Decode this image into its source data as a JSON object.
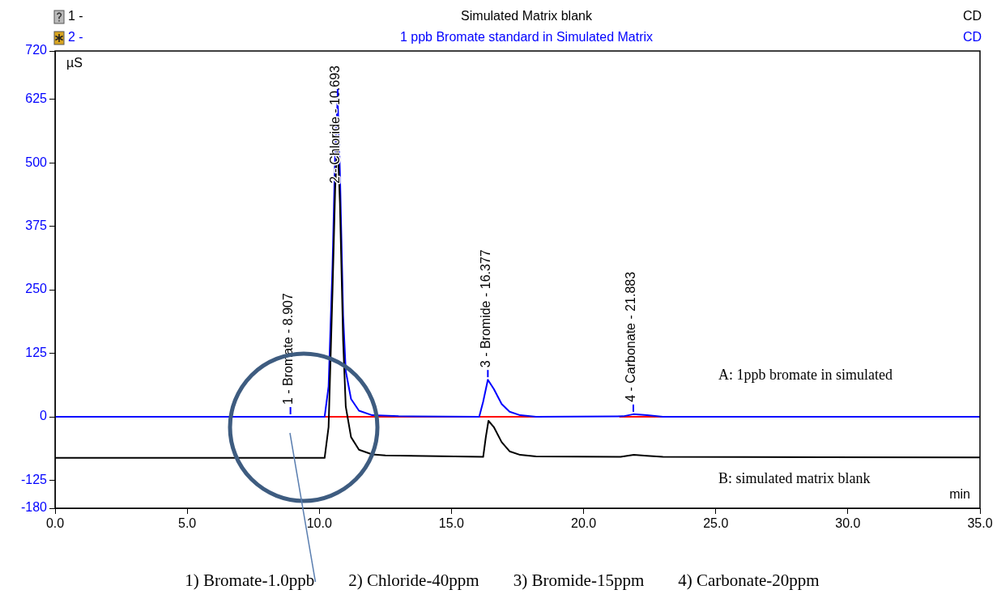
{
  "chart_data": {
    "type": "line",
    "xlabel": "min",
    "ylabel": "µS",
    "legend": "top",
    "x": [
      0,
      10.2,
      10.35,
      10.5,
      10.6,
      10.69,
      10.78,
      10.9,
      11.0,
      11.2,
      11.5,
      12,
      12.5,
      16.2,
      16.3,
      16.4,
      16.6,
      16.9,
      17.2,
      17.6,
      18.2,
      21.4,
      21.9,
      22.4,
      23,
      35
    ],
    "series": [
      {
        "name": "Simulated Matrix blank",
        "color": "#000000",
        "values": [
          -81,
          -81,
          -20,
          250,
          450,
          545,
          420,
          150,
          20,
          -40,
          -65,
          -74,
          -76,
          -79,
          -40,
          -8,
          -20,
          -50,
          -68,
          -75,
          -78,
          -79,
          -75,
          -77,
          -79,
          -80
        ]
      },
      {
        "name": "1 ppb Bromate standard in Simulated Matrix",
        "color": "#0000ff",
        "x": [
          0,
          8.8,
          8.907,
          10.2,
          10.35,
          10.5,
          10.6,
          10.693,
          10.78,
          10.9,
          11.0,
          11.2,
          11.5,
          12,
          13,
          16.05,
          16.2,
          16.377,
          16.6,
          16.9,
          17.2,
          17.6,
          18.2,
          21.5,
          21.883,
          22.4,
          23,
          35
        ],
        "values": [
          0,
          0,
          0,
          0,
          60,
          300,
          520,
          626,
          480,
          200,
          90,
          35,
          12,
          3,
          1,
          0,
          30,
          73,
          55,
          25,
          10,
          3,
          0,
          1,
          5,
          3,
          0,
          0
        ]
      },
      {
        "color": "#ff0000",
        "x": [
          8.8,
          18.2,
          19,
          21.35,
          23.0
        ],
        "values": [
          0,
          0,
          null,
          0,
          0
        ]
      }
    ],
    "xlim": [
      0,
      35
    ],
    "xticks": [
      {
        "value": 0,
        "label": "0.0"
      },
      {
        "value": 5,
        "label": "5.0"
      },
      {
        "value": 10,
        "label": "10.0"
      },
      {
        "value": 15,
        "label": "15.0"
      },
      {
        "value": 20,
        "label": "20.0"
      },
      {
        "value": 25,
        "label": "25.0"
      },
      {
        "value": 30,
        "label": "30.0"
      },
      {
        "value": 35,
        "label": "35.0"
      }
    ],
    "ylim": [
      -180,
      720
    ],
    "yticks": [
      -180,
      -125,
      0,
      125,
      250,
      375,
      500,
      625,
      720
    ],
    "grid": false,
    "marker": "none",
    "line_style": "solid",
    "annotations": [
      "1 -",
      "CD",
      "2 -",
      "CD",
      "A: 1ppb bromate in simulated",
      "B: simulated matrix blank",
      "1) Bromate-1.0ppb        2) Chloride-40ppm        3) Bromide-15ppm        4) Carbonate-20ppm",
      {
        "text": "1 - Bromate - 8.907",
        "x": 8.907,
        "y": 0
      },
      {
        "text": "2 - Chloride - 10.693",
        "x": 10.693,
        "y": 626
      },
      {
        "text": "3 - Bromide - 16.377",
        "x": 16.377,
        "y": 73
      },
      {
        "text": "4 - Carbonate - 21.883",
        "x": 21.883,
        "y": 5
      }
    ]
  }
}
